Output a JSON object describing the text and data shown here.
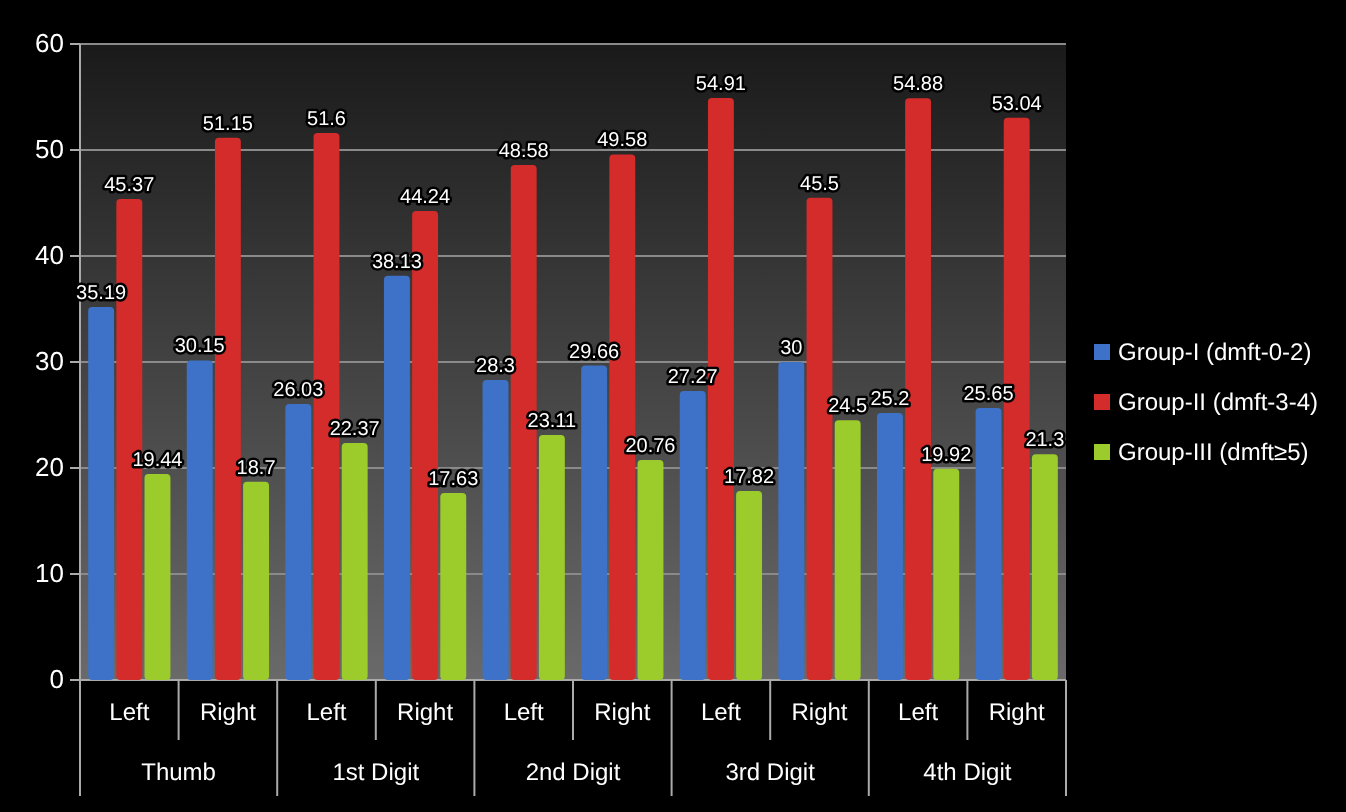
{
  "chart_data": {
    "type": "bar",
    "categories": [
      "Left",
      "Right",
      "Left",
      "Right",
      "Left",
      "Right",
      "Left",
      "Right",
      "Left",
      "Right"
    ],
    "series": [
      {
        "name": "Group-I (dmft-0-2)",
        "color": "#3d72c8",
        "values": [
          35.19,
          30.15,
          26.03,
          38.13,
          28.3,
          29.66,
          27.27,
          30,
          25.2,
          25.65
        ]
      },
      {
        "name": "Group-II (dmft-3-4)",
        "color": "#d42b2b",
        "values": [
          45.37,
          51.15,
          51.6,
          44.24,
          48.58,
          49.58,
          54.91,
          45.5,
          54.88,
          53.04
        ]
      },
      {
        "name": "Group-III (dmft≥5)",
        "color": "#9ccc2c",
        "values": [
          19.44,
          18.7,
          22.37,
          17.63,
          23.11,
          20.76,
          17.82,
          24.5,
          19.92,
          21.3
        ]
      }
    ],
    "annotations": [
      "Thumb",
      "1st Digit",
      "2nd Digit",
      "3rd Digit",
      "4th Digit"
    ],
    "ylim": [
      0,
      60
    ],
    "yticks": [
      0,
      10,
      20,
      30,
      40,
      50,
      60
    ],
    "grid": "y",
    "legend": "right",
    "data_labels": true
  }
}
